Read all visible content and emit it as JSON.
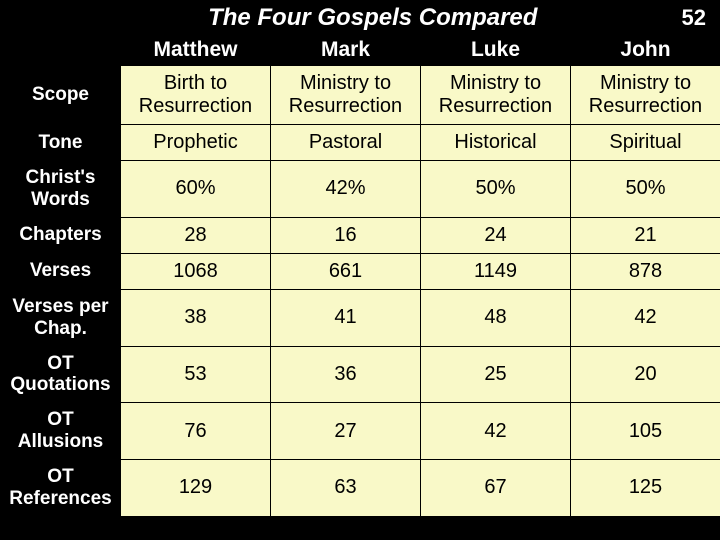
{
  "title": "The Four Gospels Compared",
  "page_number": "52",
  "columns": [
    "Matthew",
    "Mark",
    "Luke",
    "John"
  ],
  "rows": [
    {
      "label": "Scope",
      "cells": [
        "Birth to Resurrection",
        "Ministry to Resurrection",
        "Ministry to Resurrection",
        "Ministry to Resurrection"
      ]
    },
    {
      "label": "Tone",
      "cells": [
        "Prophetic",
        "Pastoral",
        "Historical",
        "Spiritual"
      ]
    },
    {
      "label": "Christ's Words",
      "cells": [
        "60%",
        "42%",
        "50%",
        "50%"
      ]
    },
    {
      "label": "Chapters",
      "cells": [
        "28",
        "16",
        "24",
        "21"
      ]
    },
    {
      "label": "Verses",
      "cells": [
        "1068",
        "661",
        "1149",
        "878"
      ]
    },
    {
      "label": "Verses per Chap.",
      "cells": [
        "38",
        "41",
        "48",
        "42"
      ]
    },
    {
      "label": "OT Quotations",
      "cells": [
        "53",
        "36",
        "25",
        "20"
      ]
    },
    {
      "label": "OT Allusions",
      "cells": [
        "76",
        "27",
        "42",
        "105"
      ]
    },
    {
      "label": "OT References",
      "cells": [
        "129",
        "63",
        "67",
        "125"
      ]
    }
  ],
  "colors": {
    "background": "#000000",
    "cell_bg": "#f9f9c8",
    "header_text": "#ffffff",
    "cell_text": "#000000"
  }
}
